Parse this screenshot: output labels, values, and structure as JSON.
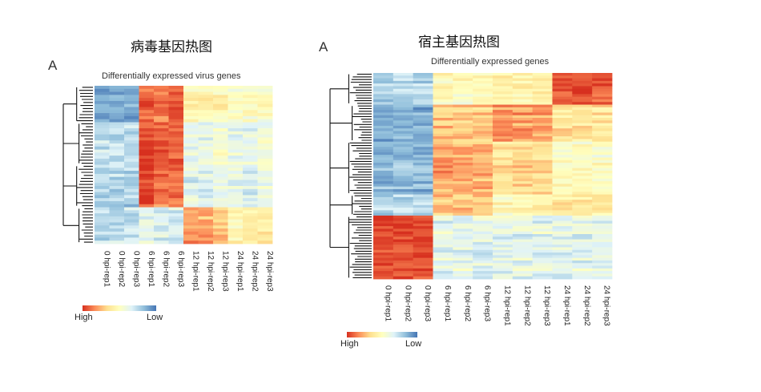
{
  "chart_data": [
    {
      "type": "heatmap",
      "panel_heading": "病毒基因热图",
      "panel_letter": "A",
      "title": "Differentially expressed virus genes",
      "columns": [
        "0 hpi-rep1",
        "0 hpi-rep2",
        "0 hpi-rep3",
        "6 hpi-rep1",
        "6 hpi-rep2",
        "6 hpi-rep3",
        "12 hpi-rep1",
        "12 hpi-rep2",
        "12 hpi-rep3",
        "24 hpi-rep1",
        "24 hpi-rep2",
        "24 hpi-rep3"
      ],
      "legend": {
        "low_label": "Low",
        "high_label": "High"
      },
      "row_clusters": [
        {
          "rows": 12,
          "profile": [
            0.15,
            0.15,
            0.15,
            0.9,
            0.85,
            0.9,
            0.55,
            0.55,
            0.55,
            0.5,
            0.5,
            0.5
          ]
        },
        {
          "rows": 14,
          "profile": [
            0.3,
            0.3,
            0.3,
            0.95,
            0.9,
            0.9,
            0.4,
            0.4,
            0.45,
            0.4,
            0.4,
            0.45
          ]
        },
        {
          "rows": 14,
          "profile": [
            0.25,
            0.25,
            0.25,
            0.95,
            0.85,
            0.85,
            0.35,
            0.35,
            0.4,
            0.35,
            0.35,
            0.4
          ]
        },
        {
          "rows": 12,
          "profile": [
            0.3,
            0.3,
            0.3,
            0.4,
            0.35,
            0.35,
            0.8,
            0.75,
            0.7,
            0.55,
            0.6,
            0.6
          ]
        }
      ]
    },
    {
      "type": "heatmap",
      "panel_heading": "宿主基因热图",
      "panel_letter": "A",
      "title": "Differentially expressed genes",
      "columns": [
        "0 hpi-rep1",
        "0 hpi-rep2",
        "0 hpi-rep3",
        "6 hpi-rep1",
        "6 hpi-rep2",
        "6 hpi-rep3",
        "12 hpi-rep1",
        "12 hpi-rep2",
        "12 hpi-rep3",
        "24 hpi-rep1",
        "24 hpi-rep2",
        "24 hpi-rep3"
      ],
      "legend": {
        "low_label": "Low",
        "high_label": "High"
      },
      "row_clusters": [
        {
          "rows": 12,
          "profile": [
            0.25,
            0.25,
            0.25,
            0.5,
            0.5,
            0.5,
            0.55,
            0.55,
            0.55,
            0.88,
            0.92,
            0.9
          ]
        },
        {
          "rows": 14,
          "profile": [
            0.15,
            0.15,
            0.15,
            0.7,
            0.68,
            0.68,
            0.8,
            0.78,
            0.75,
            0.62,
            0.62,
            0.62
          ]
        },
        {
          "rows": 20,
          "profile": [
            0.18,
            0.18,
            0.18,
            0.78,
            0.75,
            0.75,
            0.65,
            0.65,
            0.65,
            0.5,
            0.5,
            0.5
          ]
        },
        {
          "rows": 8,
          "profile": [
            0.25,
            0.25,
            0.25,
            0.7,
            0.68,
            0.68,
            0.52,
            0.52,
            0.55,
            0.6,
            0.62,
            0.6
          ]
        },
        {
          "rows": 24,
          "profile": [
            0.95,
            0.95,
            0.95,
            0.38,
            0.38,
            0.38,
            0.38,
            0.38,
            0.38,
            0.38,
            0.38,
            0.38
          ]
        }
      ]
    }
  ]
}
